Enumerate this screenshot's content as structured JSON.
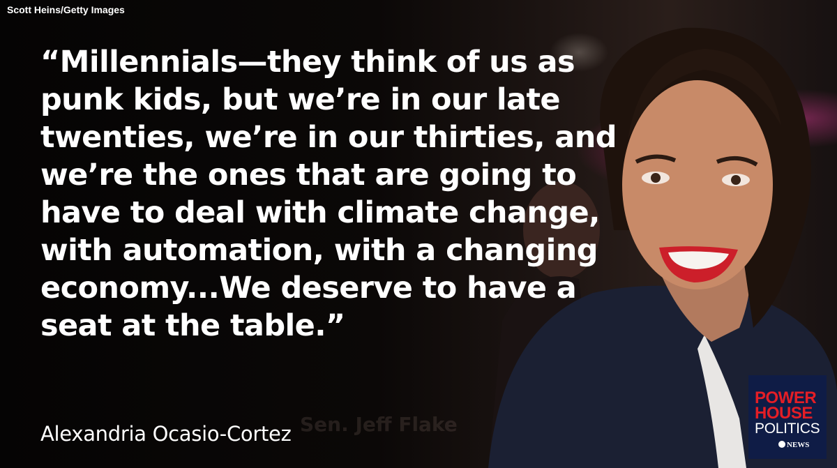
{
  "credit": "Scott Heins/Getty Images",
  "quote_lines": [
    "“Millennials—they think of us as",
    "punk kids, but we’re in our late",
    "twenties, we’re in our thirties, and",
    "we’re the ones that are going to",
    "have to deal with climate change,",
    "with automation, with a changing",
    "economy...We deserve to have a",
    "seat at the table.”"
  ],
  "speaker": "Alexandria Ocasio-Cortez",
  "ghost_text": "Sen. Jeff Flake",
  "logo": {
    "line1": "POWER",
    "line2": "HOUSE",
    "line3": "POLITICS",
    "network": "NEWS"
  },
  "colors": {
    "logo_bg": "#0f1c46",
    "logo_red": "#e41e26",
    "text": "#ffffff"
  }
}
